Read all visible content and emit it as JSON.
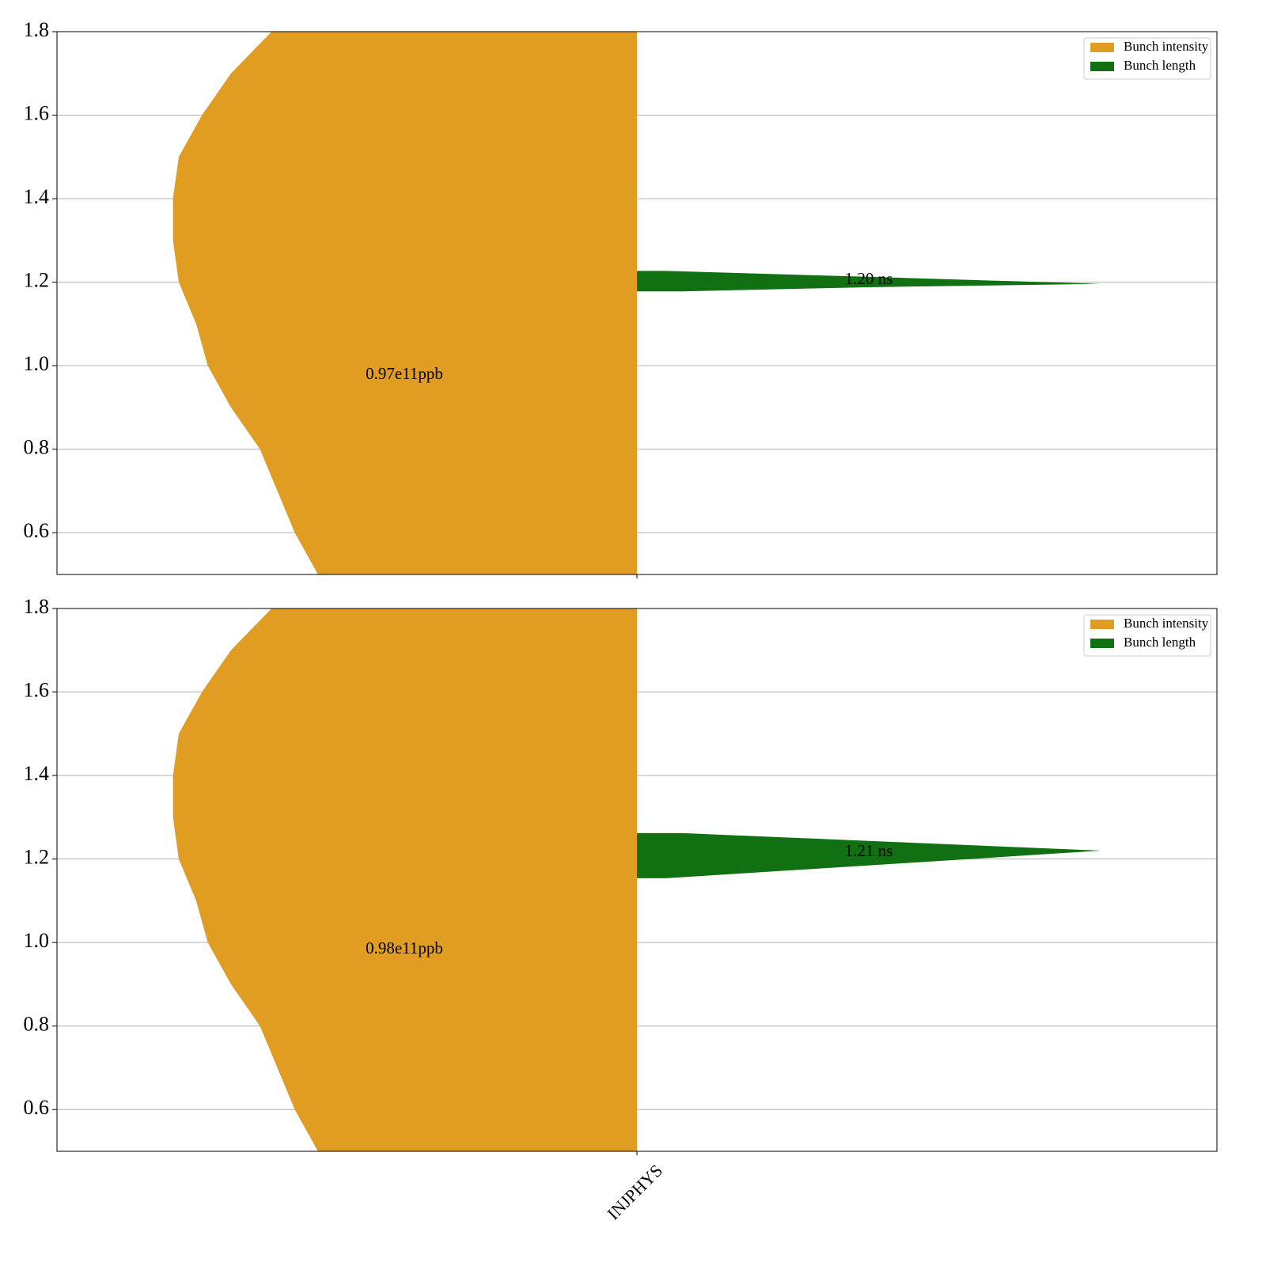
{
  "chart_data": [
    {
      "type": "violin",
      "categories": [
        null
      ],
      "ylim": [
        0.5,
        1.8
      ],
      "yticks": [
        0.6,
        0.8,
        {
          "value": 1.0,
          "label": "1.0"
        },
        1.2,
        1.4,
        1.6,
        1.8
      ],
      "grid": true,
      "legend": "upper right",
      "series": [
        {
          "name": "Bunch intensity",
          "color": "#e09d22",
          "side": "left",
          "y": [
            0.5,
            0.6,
            0.7,
            0.8,
            0.9,
            1.0,
            1.1,
            1.2,
            1.3,
            1.4,
            1.5,
            1.6,
            1.7,
            1.8
          ],
          "width": [
            0.55,
            0.59,
            0.62,
            0.65,
            0.7,
            0.74,
            0.76,
            0.79,
            0.8,
            0.8,
            0.79,
            0.75,
            0.7,
            0.63
          ]
        },
        {
          "name": "Bunch length",
          "color": "#117011",
          "side": "right",
          "y": [
            1.178,
            1.188,
            1.196,
            1.212,
            1.227
          ],
          "width": [
            0.08,
            0.4,
            0.8,
            0.42,
            0.05
          ]
        }
      ],
      "annotations": [
        "0.97e11ppb",
        "1.20 ns"
      ]
    },
    {
      "type": "violin",
      "categories": [
        "INJPHYS"
      ],
      "ylim": [
        0.5,
        1.8
      ],
      "yticks": [
        0.6,
        0.8,
        {
          "value": 1.0,
          "label": "1.0"
        },
        1.2,
        1.4,
        1.6,
        1.8
      ],
      "grid": true,
      "legend": "upper right",
      "series": [
        {
          "name": "Bunch intensity",
          "color": "#e09d22",
          "side": "left",
          "y": [
            0.5,
            0.6,
            0.7,
            0.8,
            0.9,
            1.0,
            1.1,
            1.2,
            1.3,
            1.4,
            1.5,
            1.6,
            1.7,
            1.8
          ],
          "width": [
            0.55,
            0.59,
            0.62,
            0.65,
            0.7,
            0.74,
            0.76,
            0.79,
            0.8,
            0.8,
            0.79,
            0.75,
            0.7,
            0.63
          ]
        },
        {
          "name": "Bunch length",
          "color": "#117011",
          "side": "right",
          "y": [
            1.154,
            1.19,
            1.22,
            1.241,
            1.262
          ],
          "width": [
            0.05,
            0.46,
            0.8,
            0.44,
            0.08
          ]
        }
      ],
      "annotations": [
        "0.98e11ppb",
        "1.21 ns"
      ]
    }
  ]
}
